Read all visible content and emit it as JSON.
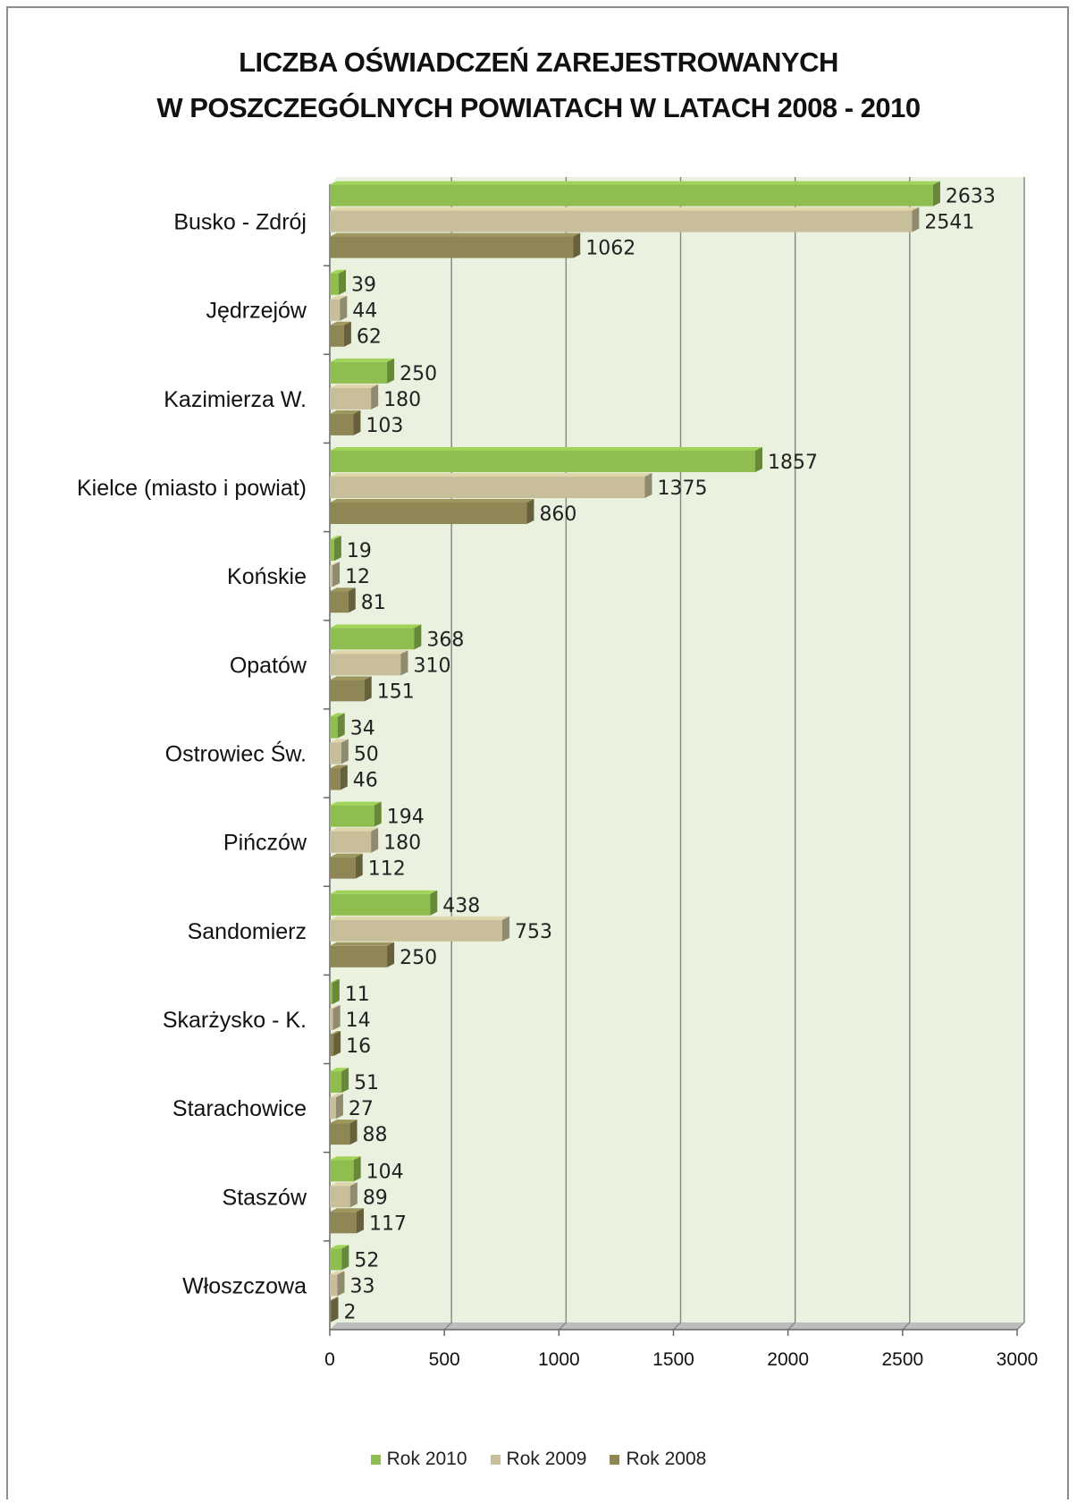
{
  "chart_data": {
    "type": "bar",
    "orientation": "horizontal",
    "title_lines": [
      "LICZBA OŚWIADCZEŃ ZAREJESTROWANYCH",
      "W POSZCZEGÓLNYCH POWIATACH W LATACH 2008 - 2010"
    ],
    "categories": [
      "Busko - Zdrój",
      "Jędrzejów",
      "Kazimierza W.",
      "Kielce (miasto i powiat)",
      "Końskie",
      "Opatów",
      "Ostrowiec Św.",
      "Pińczów",
      "Sandomierz",
      "Skarżysko - K.",
      "Starachowice",
      "Staszów",
      "Włoszczowa"
    ],
    "series": [
      {
        "name": "Rok 2010",
        "color": "#8fbd4f",
        "values": [
          2633,
          39,
          250,
          1857,
          19,
          368,
          34,
          194,
          438,
          11,
          51,
          104,
          52
        ]
      },
      {
        "name": "Rok 2009",
        "color": "#c8bf9a",
        "values": [
          2541,
          44,
          180,
          1375,
          12,
          310,
          50,
          180,
          753,
          14,
          27,
          89,
          33
        ]
      },
      {
        "name": "Rok 2008",
        "color": "#8e8655",
        "values": [
          1062,
          62,
          103,
          860,
          81,
          151,
          46,
          112,
          250,
          16,
          88,
          117,
          2
        ]
      }
    ],
    "xlim": [
      0,
      3000
    ],
    "xticks": [
      "0",
      "500",
      "1000",
      "1500",
      "2000",
      "2500",
      "3000"
    ],
    "grid": true,
    "plot_background": "#eaf2df",
    "legend_position": "bottom"
  }
}
